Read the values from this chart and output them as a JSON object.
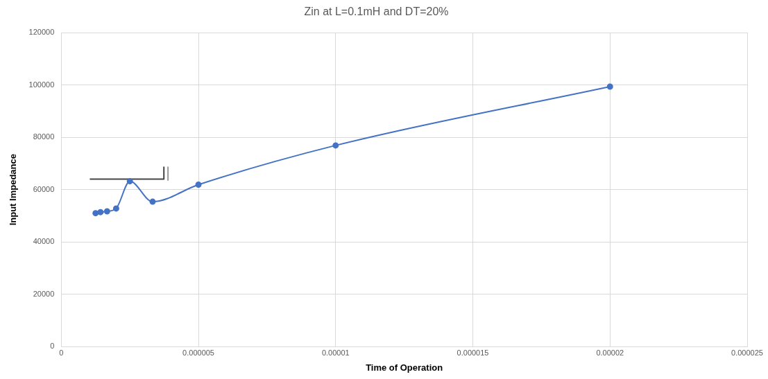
{
  "chart_data": {
    "type": "line",
    "title": "Zin at L=0.1mH and DT=20%",
    "xlabel": "Time of Operation",
    "ylabel": "Input Impedance",
    "x": [
      1.25e-06,
      1.43e-06,
      1.67e-06,
      2e-06,
      2.5e-06,
      3.33e-06,
      5e-06,
      1e-05,
      2e-05
    ],
    "series": [
      {
        "color": "#4472c4",
        "values": [
          51000,
          51400,
          51700,
          52800,
          63200,
          55400,
          61900,
          76900,
          99400
        ]
      },
      {
        "type": "line",
        "marker": "none",
        "color": "#444444",
        "x": [
          1.04e-06,
          3.74e-06,
          3.74e-06
        ],
        "values": [
          64000,
          64000,
          68800
        ]
      },
      {
        "type": "line",
        "marker": "none",
        "color": "#999999",
        "x": [
          3.89e-06,
          3.89e-06
        ],
        "values": [
          63400,
          68800
        ]
      }
    ],
    "xlim": [
      0,
      2.5e-05
    ],
    "xticks": [
      0,
      {
        "value": 5e-06,
        "label": "0.000005"
      },
      {
        "value": 1e-05,
        "label": "0.00001"
      },
      {
        "value": 1.5e-05,
        "label": "0.000015"
      },
      {
        "value": 2e-05,
        "label": "0.00002"
      },
      {
        "value": 2.5e-05,
        "label": "0.000025"
      }
    ],
    "ylim": [
      0,
      120000
    ],
    "yticks": [
      0,
      20000,
      40000,
      60000,
      80000,
      100000,
      120000
    ],
    "grid": true,
    "legend": false,
    "marker": "circle",
    "line_style": "solid"
  }
}
